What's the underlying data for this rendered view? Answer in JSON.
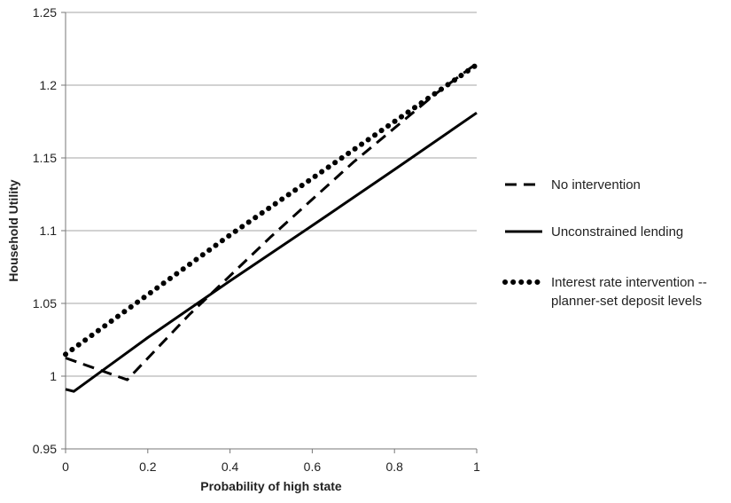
{
  "chart_data": {
    "type": "line",
    "title": "",
    "xlabel": "Probability of high state",
    "ylabel": "Household Utility",
    "xlim": [
      0,
      1
    ],
    "ylim": [
      0.95,
      1.25
    ],
    "xticks": [
      0,
      0.2,
      0.4,
      0.6,
      0.8,
      1
    ],
    "xtick_labels": [
      "0",
      "0.2",
      "0.4",
      "0.6",
      "0.8",
      "1"
    ],
    "yticks": [
      0.95,
      1.0,
      1.05,
      1.1,
      1.15,
      1.2,
      1.25
    ],
    "ytick_labels": [
      "0.95",
      "1",
      "1.05",
      "1.1",
      "1.15",
      "1.2",
      "1.25"
    ],
    "grid": "horizontal",
    "legend_position": "right",
    "series": [
      {
        "name": "No intervention",
        "legend_lines": [
          "No intervention"
        ],
        "style": "dashed",
        "color": "#000000",
        "points": [
          [
            0,
            1.0125
          ],
          [
            0.15,
            0.9975
          ],
          [
            0.3,
            1.042
          ],
          [
            0.5,
            1.096
          ],
          [
            0.7,
            1.147
          ],
          [
            0.9,
            1.194
          ],
          [
            1.0,
            1.215
          ]
        ]
      },
      {
        "name": "Unconstrained lending",
        "legend_lines": [
          "Unconstrained lending"
        ],
        "style": "solid",
        "color": "#000000",
        "points": [
          [
            0,
            0.991
          ],
          [
            0.02,
            0.9895
          ],
          [
            0.2,
            1.0265
          ],
          [
            0.4,
            1.0655
          ],
          [
            0.6,
            1.1035
          ],
          [
            0.8,
            1.142
          ],
          [
            1.0,
            1.181
          ]
        ]
      },
      {
        "name": "Interest rate intervention -- planner-set deposit levels",
        "legend_lines": [
          "Interest rate intervention --",
          "planner-set deposit levels"
        ],
        "style": "dotted",
        "color": "#000000",
        "points": [
          [
            0,
            1.015
          ],
          [
            0.2,
            1.056
          ],
          [
            0.4,
            1.097
          ],
          [
            0.6,
            1.136
          ],
          [
            0.8,
            1.175
          ],
          [
            1.0,
            1.214
          ]
        ]
      }
    ]
  }
}
